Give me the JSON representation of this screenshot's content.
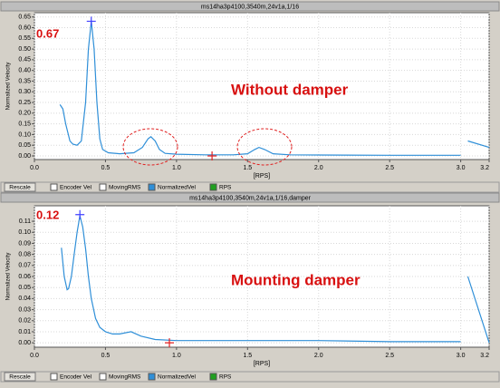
{
  "chart_data": [
    {
      "type": "line",
      "title": "ms14ha3p4100,3540m,24v1a,1/16",
      "xlabel": "[RPS]",
      "ylabel": "Normalized Velocity",
      "xlim": [
        0,
        3.2
      ],
      "ylim": [
        -0.017,
        0.67
      ],
      "xticks": [
        {
          "value": 0,
          "label": "0.0"
        },
        0.5,
        {
          "value": 1,
          "label": "1.0"
        },
        1.5,
        {
          "value": 2,
          "label": "2.0"
        },
        2.5,
        {
          "value": 3,
          "label": "3.0"
        },
        3.2
      ],
      "yticks": [
        {
          "value": 0,
          "label": "0.00"
        },
        0.05,
        {
          "value": 0.1,
          "label": "0.10"
        },
        0.15,
        {
          "value": 0.2,
          "label": "0.20"
        },
        0.25,
        {
          "value": 0.3,
          "label": "0.30"
        },
        0.35,
        {
          "value": 0.4,
          "label": "0.40"
        },
        0.45,
        {
          "value": 0.5,
          "label": "0.50"
        },
        0.55,
        {
          "value": 0.6,
          "label": "0.60"
        },
        0.65
      ],
      "grid": true,
      "series": [
        {
          "name": "NormalizedVel",
          "color": "#2f8fd8",
          "x": [
            0.18,
            0.2,
            0.22,
            0.25,
            0.27,
            0.3,
            0.33,
            0.36,
            0.38,
            0.4,
            0.42,
            0.44,
            0.46,
            0.48,
            0.52,
            0.6,
            0.7,
            0.76,
            0.8,
            0.82,
            0.85,
            0.88,
            0.92,
            1.0,
            1.2,
            1.4,
            1.5,
            1.55,
            1.58,
            1.62,
            1.68,
            1.8,
            2.0,
            2.5,
            3.0,
            3.02,
            3.05,
            3.2
          ],
          "values": [
            0.24,
            0.22,
            0.15,
            0.07,
            0.055,
            0.05,
            0.07,
            0.25,
            0.5,
            0.63,
            0.5,
            0.25,
            0.08,
            0.03,
            0.015,
            0.01,
            0.015,
            0.04,
            0.08,
            0.09,
            0.07,
            0.03,
            0.012,
            0.008,
            0.005,
            0.005,
            0.01,
            0.03,
            0.04,
            0.03,
            0.01,
            0.005,
            0.004,
            0.003,
            0.003,
            null,
            0.07,
            0.04
          ]
        }
      ],
      "markers": [
        {
          "x": 0.4,
          "y": 0.63,
          "color": "#4040ff"
        },
        {
          "x": 1.25,
          "y": 0,
          "color": "#e02020"
        }
      ],
      "annotations": [
        "0.67",
        "Without damper"
      ],
      "toolbar": [
        "Rescale",
        "Encoder Vel",
        "MovingRMS",
        "NormalizedVel",
        "RPS"
      ]
    },
    {
      "type": "line",
      "title": "ms14ha3p4100,3540m,24v1a,1/16,damper",
      "xlabel": "[RPS]",
      "ylabel": "Normalized Velocity",
      "xlim": [
        0,
        3.2
      ],
      "ylim": [
        -0.004,
        0.124
      ],
      "xticks": [
        {
          "value": 0,
          "label": "0.0"
        },
        0.5,
        {
          "value": 1,
          "label": "1.0"
        },
        1.5,
        {
          "value": 2,
          "label": "2.0"
        },
        2.5,
        {
          "value": 3,
          "label": "3.0"
        },
        3.2
      ],
      "yticks": [
        {
          "value": 0,
          "label": "0.00"
        },
        0.01,
        0.02,
        0.03,
        0.04,
        0.05,
        0.06,
        0.07,
        0.08,
        0.09,
        {
          "value": 0.1,
          "label": "0.10"
        },
        0.11
      ],
      "grid": true,
      "series": [
        {
          "name": "NormalizedVel",
          "color": "#2f8fd8",
          "x": [
            0.19,
            0.21,
            0.23,
            0.24,
            0.26,
            0.28,
            0.3,
            0.32,
            0.34,
            0.36,
            0.38,
            0.4,
            0.43,
            0.46,
            0.5,
            0.55,
            0.6,
            0.68,
            0.75,
            0.85,
            1.0,
            1.5,
            2.0,
            2.5,
            3.0,
            3.02,
            3.05,
            3.2
          ],
          "values": [
            0.086,
            0.06,
            0.048,
            0.049,
            0.06,
            0.08,
            0.1,
            0.115,
            0.105,
            0.085,
            0.06,
            0.04,
            0.022,
            0.014,
            0.01,
            0.008,
            0.008,
            0.01,
            0.006,
            0.003,
            0.002,
            0.002,
            0.002,
            0.001,
            0.001,
            null,
            0.06,
            0
          ]
        }
      ],
      "markers": [
        {
          "x": 0.32,
          "y": 0.116,
          "color": "#4040ff"
        },
        {
          "x": 0.95,
          "y": 0,
          "color": "#e02020"
        }
      ],
      "annotations": [
        "0.12",
        "Mounting damper"
      ],
      "toolbar": [
        "Rescale",
        "Encoder Vel",
        "MovingRMS",
        "NormalizedVel",
        "RPS"
      ]
    }
  ]
}
